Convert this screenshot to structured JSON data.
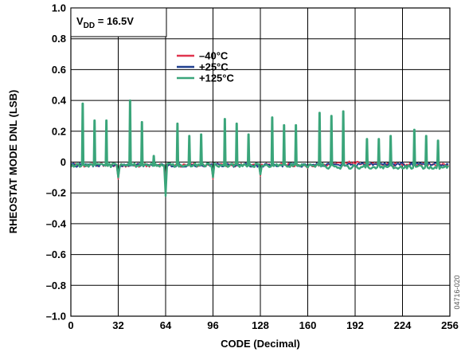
{
  "chart_data": {
    "type": "line",
    "title": "",
    "xlabel": "CODE (Decimal)",
    "ylabel": "RHEOSTAT MODE DNL (LSB)",
    "xlim": [
      0,
      256
    ],
    "ylim": [
      -1.0,
      1.0
    ],
    "x_ticks": [
      "0",
      "32",
      "64",
      "96",
      "128",
      "160",
      "192",
      "224",
      "256"
    ],
    "y_ticks": [
      "1.0",
      "0.8",
      "0.6",
      "0.4",
      "0.2",
      "0",
      "–0.2",
      "–0.4",
      "–0.6",
      "–0.8",
      "–1.0"
    ],
    "grid": true,
    "annotation_main": "V",
    "annotation_sub": "DD",
    "annotation_rest": " = 16.5V",
    "figure_id": "04716-020",
    "legend_position": "top-center",
    "baseline_offset": -0.02,
    "spikes_125C": [
      {
        "code": 8,
        "dnl": 0.38
      },
      {
        "code": 16,
        "dnl": 0.27
      },
      {
        "code": 24,
        "dnl": 0.27
      },
      {
        "code": 40,
        "dnl": 0.4
      },
      {
        "code": 48,
        "dnl": 0.26
      },
      {
        "code": 56,
        "dnl": 0.04
      },
      {
        "code": 64,
        "dnl": -0.22
      },
      {
        "code": 72,
        "dnl": 0.25
      },
      {
        "code": 80,
        "dnl": 0.17
      },
      {
        "code": 88,
        "dnl": 0.18
      },
      {
        "code": 104,
        "dnl": 0.28
      },
      {
        "code": 112,
        "dnl": 0.25
      },
      {
        "code": 120,
        "dnl": 0.18
      },
      {
        "code": 136,
        "dnl": 0.29
      },
      {
        "code": 144,
        "dnl": 0.24
      },
      {
        "code": 152,
        "dnl": 0.24
      },
      {
        "code": 168,
        "dnl": 0.32
      },
      {
        "code": 176,
        "dnl": 0.3
      },
      {
        "code": 184,
        "dnl": 0.33
      },
      {
        "code": 200,
        "dnl": 0.15
      },
      {
        "code": 208,
        "dnl": 0.15
      },
      {
        "code": 216,
        "dnl": 0.17
      },
      {
        "code": 232,
        "dnl": 0.21
      },
      {
        "code": 240,
        "dnl": 0.17
      },
      {
        "code": 248,
        "dnl": 0.14
      }
    ],
    "dips": [
      {
        "code": 32,
        "dnl": -0.11
      },
      {
        "code": 96,
        "dnl": -0.11
      },
      {
        "code": 128,
        "dnl": -0.09
      },
      {
        "code": 160,
        "dnl": -0.04
      }
    ],
    "series": [
      {
        "name": "–40°C",
        "color": "#e0344e",
        "spike_scale": 0.08
      },
      {
        "name": "+25°C",
        "color": "#1f3f8f",
        "spike_scale": 0.15
      },
      {
        "name": "+125°C",
        "color": "#3aa57a",
        "spike_scale": 1.0
      }
    ]
  }
}
